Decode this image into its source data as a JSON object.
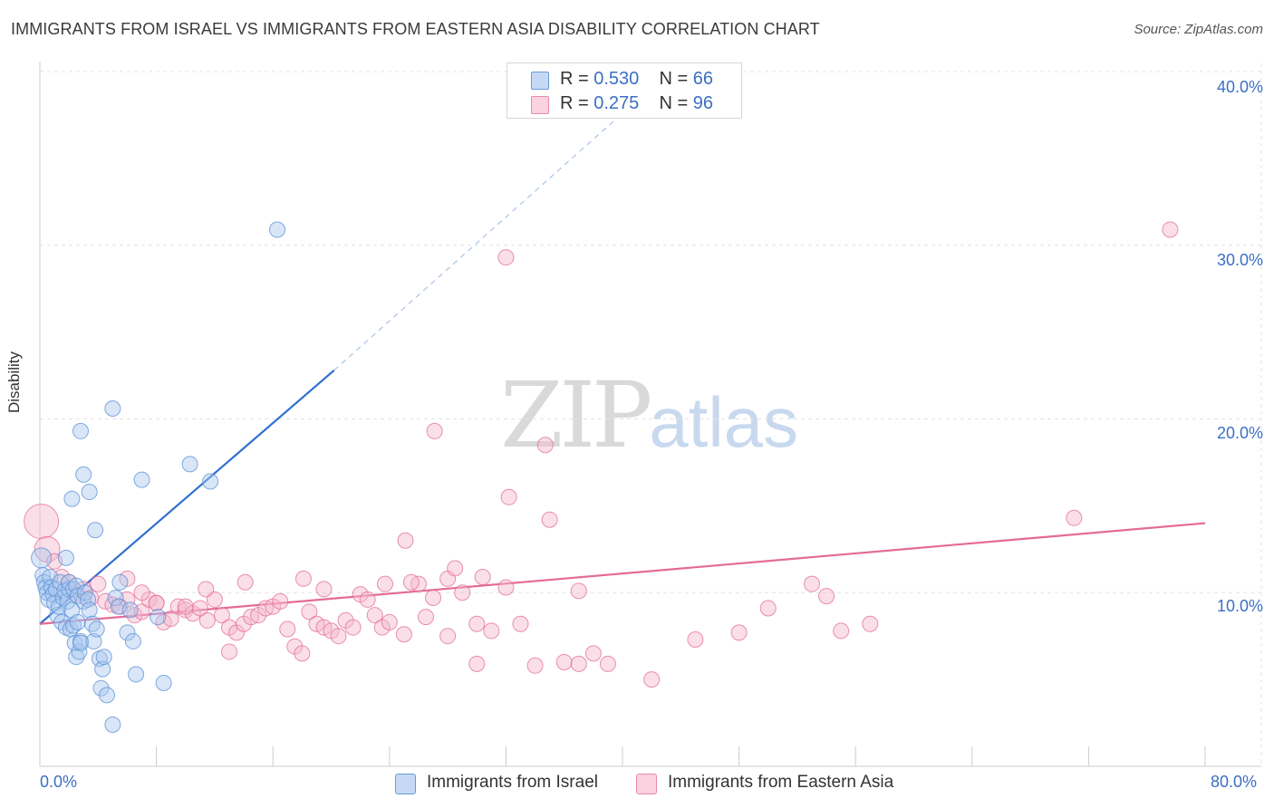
{
  "header": {
    "title": "IMMIGRANTS FROM ISRAEL VS IMMIGRANTS FROM EASTERN ASIA DISABILITY CORRELATION CHART",
    "source": "Source: ZipAtlas.com"
  },
  "watermark": {
    "zip": "ZIP",
    "atlas": "atlas"
  },
  "legend_top": {
    "rows": [
      {
        "r_label": "R = ",
        "r_value": "0.530",
        "n_label": "N = ",
        "n_value": "66",
        "color": "#a9c8f0"
      },
      {
        "r_label": "R = ",
        "r_value": "0.275",
        "n_label": "N = ",
        "n_value": "96",
        "color": "#f5b8cc"
      }
    ]
  },
  "legend_bottom": {
    "items": [
      {
        "label": "Immigrants from Israel",
        "color": "#a9c8f0"
      },
      {
        "label": "Immigrants from Eastern Asia",
        "color": "#f5b8cc"
      }
    ]
  },
  "axes": {
    "ylabel": "Disability",
    "yticks": [
      "40.0%",
      "30.0%",
      "20.0%",
      "10.0%"
    ],
    "xticks": [
      "0.0%",
      "80.0%"
    ]
  },
  "chart_data": {
    "type": "scatter",
    "title": "IMMIGRANTS FROM ISRAEL VS IMMIGRANTS FROM EASTERN ASIA DISABILITY CORRELATION CHART",
    "xlabel": "",
    "ylabel": "Disability",
    "xlim": [
      0,
      80
    ],
    "ylim": [
      0,
      40
    ],
    "grid": true,
    "legend": "bottom",
    "series": [
      {
        "name": "Immigrants from Israel",
        "color": "#5b8fd6",
        "fill": "#a9c8f0",
        "R": 0.53,
        "N": 66,
        "trend": {
          "x": [
            0,
            20.2
          ],
          "y": [
            8.2,
            22.8
          ],
          "dashed_to": [
            40.8,
            38.2
          ]
        },
        "points": [
          [
            0.1,
            12.0
          ],
          [
            0.2,
            11.0
          ],
          [
            0.3,
            10.6
          ],
          [
            0.4,
            10.3
          ],
          [
            0.5,
            10.0
          ],
          [
            0.6,
            9.6
          ],
          [
            0.7,
            10.9
          ],
          [
            0.8,
            10.3
          ],
          [
            0.9,
            9.9
          ],
          [
            1.0,
            9.4
          ],
          [
            1.1,
            10.2
          ],
          [
            1.2,
            8.7
          ],
          [
            1.3,
            9.2
          ],
          [
            1.4,
            10.6
          ],
          [
            1.5,
            8.3
          ],
          [
            1.6,
            9.7
          ],
          [
            1.7,
            10.1
          ],
          [
            1.8,
            8.0
          ],
          [
            1.9,
            9.5
          ],
          [
            2.0,
            10.2
          ],
          [
            2.1,
            7.9
          ],
          [
            2.2,
            9.0
          ],
          [
            2.3,
            8.1
          ],
          [
            2.4,
            7.1
          ],
          [
            2.5,
            6.3
          ],
          [
            2.6,
            8.3
          ],
          [
            2.7,
            6.6
          ],
          [
            2.8,
            7.2
          ],
          [
            1.8,
            12.0
          ],
          [
            2.0,
            10.6
          ],
          [
            2.2,
            15.4
          ],
          [
            2.3,
            10.2
          ],
          [
            2.5,
            10.4
          ],
          [
            2.6,
            9.8
          ],
          [
            2.8,
            7.1
          ],
          [
            3.0,
            9.5
          ],
          [
            3.1,
            10.0
          ],
          [
            3.3,
            9.6
          ],
          [
            3.4,
            9.0
          ],
          [
            3.6,
            8.2
          ],
          [
            3.7,
            7.2
          ],
          [
            3.9,
            7.9
          ],
          [
            4.1,
            6.2
          ],
          [
            4.2,
            4.5
          ],
          [
            4.3,
            5.6
          ],
          [
            4.4,
            6.3
          ],
          [
            4.6,
            4.1
          ],
          [
            5.0,
            2.4
          ],
          [
            5.2,
            9.7
          ],
          [
            5.4,
            9.2
          ],
          [
            5.5,
            10.6
          ],
          [
            6.0,
            7.7
          ],
          [
            6.2,
            9.0
          ],
          [
            6.4,
            7.2
          ],
          [
            6.6,
            5.3
          ],
          [
            7.0,
            16.5
          ],
          [
            8.1,
            8.6
          ],
          [
            8.5,
            4.8
          ],
          [
            3.0,
            16.8
          ],
          [
            3.4,
            15.8
          ],
          [
            3.8,
            13.6
          ],
          [
            5.0,
            20.6
          ],
          [
            2.8,
            19.3
          ],
          [
            10.3,
            17.4
          ],
          [
            11.7,
            16.4
          ],
          [
            16.3,
            30.9
          ]
        ]
      },
      {
        "name": "Immigrants from Eastern Asia",
        "color": "#e46b97",
        "fill": "#f5b8cc",
        "R": 0.275,
        "N": 96,
        "trend": {
          "x": [
            0,
            80
          ],
          "y": [
            8.2,
            14.0
          ]
        },
        "points": [
          [
            0.1,
            14.1
          ],
          [
            0.5,
            12.5
          ],
          [
            1.0,
            11.8
          ],
          [
            1.5,
            10.9
          ],
          [
            2.0,
            10.6
          ],
          [
            2.5,
            9.9
          ],
          [
            3.0,
            10.2
          ],
          [
            3.5,
            9.7
          ],
          [
            4.0,
            10.5
          ],
          [
            4.5,
            9.5
          ],
          [
            5.0,
            9.3
          ],
          [
            5.5,
            9.2
          ],
          [
            6.0,
            9.6
          ],
          [
            6.5,
            8.7
          ],
          [
            7.0,
            8.9
          ],
          [
            7.5,
            9.6
          ],
          [
            8.0,
            9.4
          ],
          [
            8.5,
            8.3
          ],
          [
            9.0,
            8.5
          ],
          [
            9.5,
            9.2
          ],
          [
            10.0,
            9.0
          ],
          [
            10.5,
            8.8
          ],
          [
            11.0,
            9.1
          ],
          [
            11.5,
            8.4
          ],
          [
            12.0,
            9.6
          ],
          [
            12.5,
            8.7
          ],
          [
            13.0,
            8.0
          ],
          [
            13.5,
            7.7
          ],
          [
            14.0,
            8.2
          ],
          [
            14.5,
            8.6
          ],
          [
            15.0,
            8.7
          ],
          [
            15.5,
            9.1
          ],
          [
            16.0,
            9.2
          ],
          [
            16.5,
            9.5
          ],
          [
            17.0,
            7.9
          ],
          [
            17.5,
            6.9
          ],
          [
            18.0,
            6.5
          ],
          [
            18.5,
            8.9
          ],
          [
            19.0,
            8.2
          ],
          [
            19.5,
            8.0
          ],
          [
            20.0,
            7.8
          ],
          [
            20.5,
            7.5
          ],
          [
            21.0,
            8.4
          ],
          [
            21.5,
            8.0
          ],
          [
            22.0,
            9.9
          ],
          [
            22.5,
            9.6
          ],
          [
            23.0,
            8.7
          ],
          [
            23.5,
            8.0
          ],
          [
            24.0,
            8.3
          ],
          [
            25.0,
            7.6
          ],
          [
            26.0,
            10.5
          ],
          [
            27.0,
            9.7
          ],
          [
            28.0,
            10.8
          ],
          [
            29.0,
            10.0
          ],
          [
            30.0,
            8.2
          ],
          [
            31.0,
            7.8
          ],
          [
            32.0,
            10.3
          ],
          [
            33.0,
            8.2
          ],
          [
            34.0,
            5.8
          ],
          [
            35.0,
            14.2
          ],
          [
            36.0,
            6.0
          ],
          [
            37.0,
            5.9
          ],
          [
            38.0,
            6.5
          ],
          [
            39.0,
            5.9
          ],
          [
            42.0,
            5.0
          ],
          [
            45.0,
            7.3
          ],
          [
            48.0,
            7.7
          ],
          [
            50.0,
            9.1
          ],
          [
            53.0,
            10.5
          ],
          [
            54.0,
            9.8
          ],
          [
            55.0,
            7.8
          ],
          [
            57.0,
            8.2
          ],
          [
            6.0,
            10.8
          ],
          [
            7.0,
            10.0
          ],
          [
            8.0,
            9.4
          ],
          [
            10.0,
            9.2
          ],
          [
            11.4,
            10.2
          ],
          [
            13.0,
            6.6
          ],
          [
            14.1,
            10.6
          ],
          [
            18.1,
            10.8
          ],
          [
            19.5,
            10.2
          ],
          [
            23.7,
            10.5
          ],
          [
            25.5,
            10.6
          ],
          [
            26.5,
            8.6
          ],
          [
            28.5,
            11.4
          ],
          [
            30.4,
            10.9
          ],
          [
            25.1,
            13.0
          ],
          [
            27.1,
            19.3
          ],
          [
            32.2,
            15.5
          ],
          [
            34.7,
            18.5
          ],
          [
            37.0,
            10.1
          ],
          [
            28.0,
            7.5
          ],
          [
            30.0,
            5.9
          ],
          [
            32.0,
            29.3
          ],
          [
            71.0,
            14.3
          ],
          [
            77.6,
            30.9
          ]
        ]
      }
    ]
  }
}
